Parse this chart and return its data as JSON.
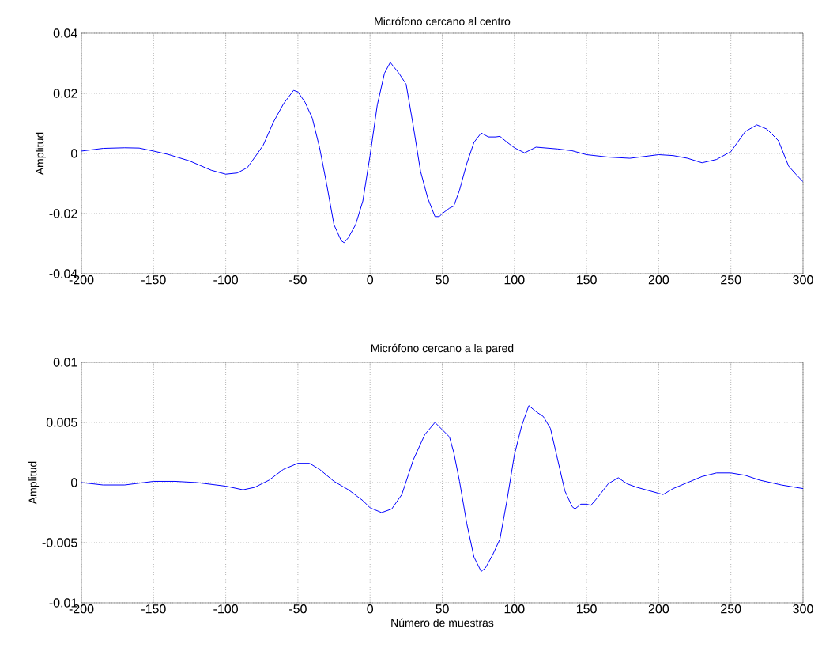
{
  "chart_data": [
    {
      "type": "line",
      "title": "Micrófono cercano al centro",
      "ylabel": "Amplitud",
      "xlim": [
        -200,
        300
      ],
      "ylim": [
        -0.04,
        0.04
      ],
      "xticks": [
        -200,
        -150,
        -100,
        -50,
        0,
        50,
        100,
        150,
        200,
        250,
        300
      ],
      "yticks": [
        -0.04,
        -0.02,
        0,
        0.02,
        0.04
      ],
      "grid": true,
      "x": [
        -200,
        -185,
        -170,
        -160,
        -150,
        -140,
        -125,
        -110,
        -100,
        -92,
        -85,
        -78,
        -74,
        -67,
        -60,
        -53,
        -50,
        -45,
        -40,
        -35,
        -30,
        -25,
        -20,
        -18,
        -15,
        -10,
        -5,
        0,
        5,
        10,
        14,
        20,
        25,
        30,
        35,
        40,
        45,
        48,
        50,
        55,
        58,
        62,
        67,
        72,
        77,
        82,
        87,
        90,
        95,
        100,
        107,
        115,
        130,
        140,
        150,
        165,
        180,
        200,
        210,
        220,
        230,
        240,
        250,
        260,
        268,
        275,
        283,
        290,
        295,
        300
      ],
      "series": [
        {
          "color": "#0000ff",
          "values": [
            0.0008,
            0.0017,
            0.0019,
            0.0018,
            0.0008,
            -0.0003,
            -0.0025,
            -0.0056,
            -0.0069,
            -0.0065,
            -0.0047,
            0.0,
            0.0028,
            0.0104,
            0.0165,
            0.021,
            0.0205,
            0.017,
            0.0117,
            0.002,
            -0.0104,
            -0.0237,
            -0.029,
            -0.0297,
            -0.028,
            -0.0237,
            -0.0158,
            -0.0007,
            0.0161,
            0.0267,
            0.0303,
            0.0267,
            0.023,
            0.009,
            -0.006,
            -0.0149,
            -0.021,
            -0.021,
            -0.02,
            -0.0182,
            -0.0175,
            -0.0122,
            -0.0034,
            0.0037,
            0.0068,
            0.0055,
            0.0055,
            0.0057,
            0.0037,
            0.0019,
            0.0002,
            0.0021,
            0.0015,
            0.0009,
            -0.0004,
            -0.0012,
            -0.0016,
            -0.0004,
            -0.0007,
            -0.0016,
            -0.0031,
            -0.002,
            0.0006,
            0.0073,
            0.0095,
            0.0081,
            0.0042,
            -0.0042,
            -0.0069,
            -0.0094
          ]
        }
      ]
    },
    {
      "type": "line",
      "title": "Micrófono cercano a la pared",
      "xlabel": "Número de muestras",
      "ylabel": "Amplitud",
      "xlim": [
        -200,
        300
      ],
      "ylim": [
        -0.01,
        0.01
      ],
      "xticks": [
        -200,
        -150,
        -100,
        -50,
        0,
        50,
        100,
        150,
        200,
        250,
        300
      ],
      "yticks": [
        -0.01,
        -0.005,
        0,
        0.005,
        0.01
      ],
      "grid": true,
      "x": [
        -200,
        -185,
        -170,
        -150,
        -135,
        -120,
        -100,
        -88,
        -80,
        -70,
        -60,
        -50,
        -42,
        -35,
        -25,
        -15,
        -5,
        0,
        8,
        15,
        22,
        30,
        38,
        45,
        50,
        55,
        58,
        62,
        67,
        72,
        77,
        80,
        85,
        90,
        95,
        100,
        105,
        110,
        115,
        120,
        125,
        130,
        135,
        140,
        142,
        146,
        150,
        153,
        158,
        165,
        172,
        178,
        185,
        200,
        203,
        210,
        220,
        230,
        240,
        250,
        260,
        270,
        285,
        300
      ],
      "series": [
        {
          "color": "#0000ff",
          "values": [
            0.0,
            -0.0002,
            -0.0002,
            0.0001,
            0.0001,
            0.0,
            -0.0003,
            -0.0006,
            -0.0004,
            0.0002,
            0.0011,
            0.0016,
            0.0016,
            0.0011,
            0.0001,
            -0.0006,
            -0.0015,
            -0.0021,
            -0.0025,
            -0.0022,
            -0.001,
            0.0019,
            0.004,
            0.005,
            0.0044,
            0.0038,
            0.0025,
            0.0001,
            -0.0034,
            -0.0062,
            -0.0074,
            -0.0071,
            -0.006,
            -0.0047,
            -0.0014,
            0.0023,
            0.0047,
            0.0064,
            0.0059,
            0.0055,
            0.0045,
            0.0019,
            -0.0007,
            -0.002,
            -0.0022,
            -0.0018,
            -0.0018,
            -0.0019,
            -0.0012,
            -0.0001,
            0.0004,
            -0.0001,
            -0.0004,
            -0.0009,
            -0.001,
            -0.0005,
            0.0,
            0.0005,
            0.0008,
            0.0008,
            0.0006,
            0.0002,
            -0.0002,
            -0.0005
          ]
        }
      ]
    }
  ]
}
